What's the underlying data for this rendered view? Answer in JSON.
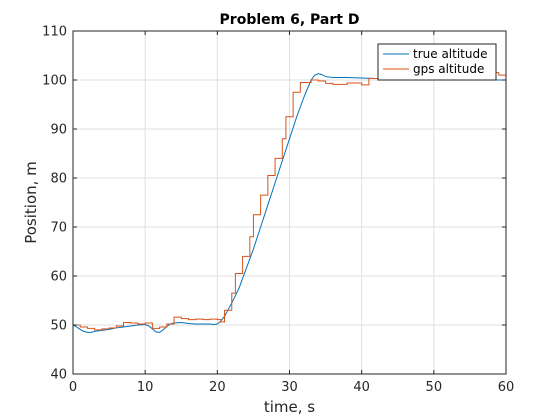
{
  "chart_data": {
    "type": "line",
    "title": "Problem 6, Part D",
    "xlabel": "time, s",
    "ylabel": "Position, m",
    "xlim": [
      0,
      60
    ],
    "ylim": [
      40,
      110
    ],
    "xticks": [
      0,
      10,
      20,
      30,
      40,
      50,
      60
    ],
    "yticks": [
      40,
      50,
      60,
      70,
      80,
      90,
      100,
      110
    ],
    "xtick_labels": [
      "0",
      "10",
      "20",
      "30",
      "40",
      "50",
      "60"
    ],
    "ytick_labels": [
      "40",
      "50",
      "60",
      "70",
      "80",
      "90",
      "100",
      "110"
    ],
    "grid": true,
    "legend_position": "top-right",
    "series": [
      {
        "name": "true altitude",
        "color": "#0072BD",
        "style": "line",
        "points": [
          [
            0,
            50
          ],
          [
            0.5,
            49.6
          ],
          [
            1,
            49.1
          ],
          [
            1.5,
            48.7
          ],
          [
            2,
            48.5
          ],
          [
            2.5,
            48.5
          ],
          [
            3,
            48.7
          ],
          [
            4,
            48.9
          ],
          [
            5,
            49.1
          ],
          [
            6,
            49.4
          ],
          [
            7,
            49.6
          ],
          [
            8,
            49.8
          ],
          [
            9,
            50
          ],
          [
            10,
            50.1
          ],
          [
            10.5,
            49.8
          ],
          [
            11,
            49.2
          ],
          [
            11.5,
            48.6
          ],
          [
            12,
            48.5
          ],
          [
            12.5,
            49
          ],
          [
            13,
            49.7
          ],
          [
            13.5,
            50.2
          ],
          [
            14,
            50.4
          ],
          [
            15,
            50.5
          ],
          [
            16,
            50.3
          ],
          [
            17,
            50.2
          ],
          [
            18,
            50.2
          ],
          [
            19,
            50.2
          ],
          [
            19.5,
            50.1
          ],
          [
            20,
            50.2
          ],
          [
            20.5,
            50.8
          ],
          [
            21,
            51.8
          ],
          [
            22,
            54.5
          ],
          [
            23,
            57.5
          ],
          [
            24,
            61.5
          ],
          [
            25,
            65.5
          ],
          [
            26,
            70
          ],
          [
            27,
            74.5
          ],
          [
            28,
            79
          ],
          [
            29,
            83.5
          ],
          [
            30,
            88
          ],
          [
            31,
            92.5
          ],
          [
            32,
            96.5
          ],
          [
            33,
            100
          ],
          [
            33.5,
            101
          ],
          [
            34,
            101.3
          ],
          [
            34.5,
            101.1
          ],
          [
            35,
            100.7
          ],
          [
            36,
            100.5
          ],
          [
            38,
            100.5
          ],
          [
            40,
            100.4
          ],
          [
            42,
            100.3
          ],
          [
            45,
            100.2
          ],
          [
            48,
            100.1
          ],
          [
            52,
            100
          ],
          [
            56,
            100
          ],
          [
            60,
            100
          ]
        ]
      },
      {
        "name": "gps altitude",
        "color": "#D95319",
        "style": "step",
        "points": [
          [
            0,
            50
          ],
          [
            1,
            49.6
          ],
          [
            2,
            49.3
          ],
          [
            3,
            49
          ],
          [
            4,
            49.2
          ],
          [
            5,
            49.4
          ],
          [
            6,
            49.8
          ],
          [
            7,
            50.5
          ],
          [
            8,
            50.4
          ],
          [
            9,
            50.2
          ],
          [
            10,
            50.4
          ],
          [
            11,
            49.3
          ],
          [
            12,
            49.6
          ],
          [
            13,
            50.2
          ],
          [
            14,
            51.6
          ],
          [
            15,
            51.3
          ],
          [
            16,
            51.1
          ],
          [
            17,
            51.2
          ],
          [
            18,
            51.1
          ],
          [
            19,
            51.2
          ],
          [
            20,
            51.1
          ],
          [
            20.5,
            50.6
          ],
          [
            21,
            53
          ],
          [
            22,
            56.5
          ],
          [
            22.5,
            60.5
          ],
          [
            23.5,
            64
          ],
          [
            24.5,
            68
          ],
          [
            25,
            72.5
          ],
          [
            26,
            76.5
          ],
          [
            27,
            80.5
          ],
          [
            28,
            84
          ],
          [
            29,
            88
          ],
          [
            29.5,
            92.5
          ],
          [
            30.5,
            97.5
          ],
          [
            31.5,
            99.5
          ],
          [
            33,
            100
          ],
          [
            34,
            99.8
          ],
          [
            35,
            99.3
          ],
          [
            36,
            99.1
          ],
          [
            38,
            99.4
          ],
          [
            40,
            99
          ],
          [
            41,
            100.3
          ],
          [
            44,
            100.1
          ],
          [
            48,
            100.3
          ],
          [
            52,
            100.4
          ],
          [
            56,
            101.5
          ],
          [
            59,
            101
          ],
          [
            60,
            101
          ]
        ]
      }
    ]
  }
}
